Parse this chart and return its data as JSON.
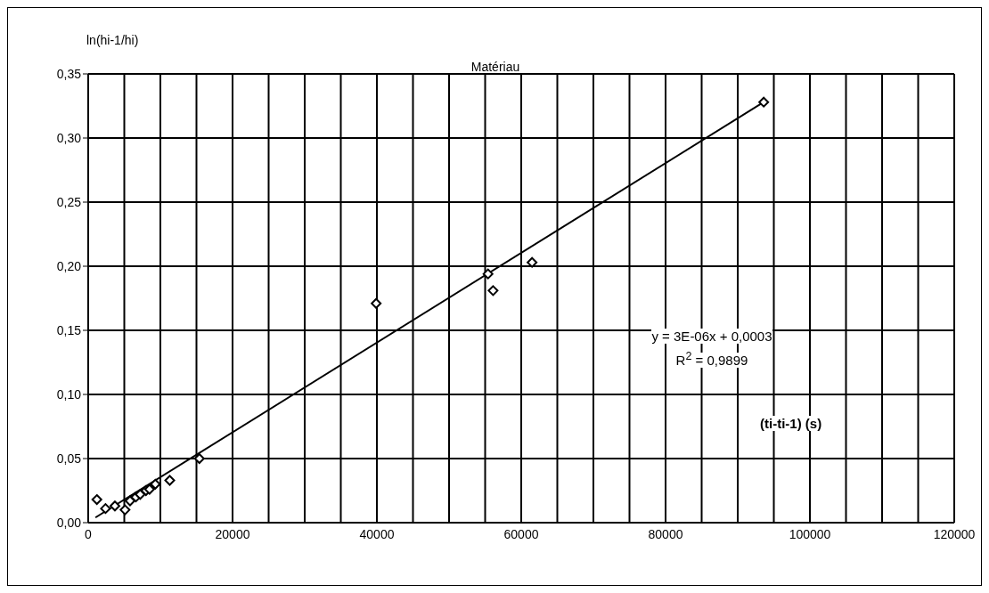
{
  "chart_data": {
    "type": "scatter",
    "title": "Matériau",
    "xlabel": "(ti-ti-1) (s)",
    "ylabel": "ln(hi-1/hi)",
    "annotations": [
      "y = 3E-06x + 0,0003",
      "R$^{2}$ = 0,9899"
    ],
    "xlim": [
      0,
      120000
    ],
    "xticks": [
      0,
      {
        "value": 5000,
        "label": null
      },
      {
        "value": 10000,
        "label": null
      },
      {
        "value": 15000,
        "label": null
      },
      20000,
      {
        "value": 25000,
        "label": null
      },
      {
        "value": 30000,
        "label": null
      },
      {
        "value": 35000,
        "label": null
      },
      40000,
      {
        "value": 45000,
        "label": null
      },
      {
        "value": 50000,
        "label": null
      },
      {
        "value": 55000,
        "label": null
      },
      60000,
      {
        "value": 65000,
        "label": null
      },
      {
        "value": 70000,
        "label": null
      },
      {
        "value": 75000,
        "label": null
      },
      80000,
      {
        "value": 85000,
        "label": null
      },
      {
        "value": 90000,
        "label": null
      },
      {
        "value": 95000,
        "label": null
      },
      100000,
      {
        "value": 105000,
        "label": null
      },
      {
        "value": 110000,
        "label": null
      },
      {
        "value": 115000,
        "label": null
      },
      120000
    ],
    "ylim": [
      0,
      0.35
    ],
    "yticks": [
      {
        "value": 0,
        "label": "0,00"
      },
      {
        "value": 0.05,
        "label": "0,05"
      },
      {
        "value": 0.1,
        "label": "0,10"
      },
      {
        "value": 0.15,
        "label": "0,15"
      },
      {
        "value": 0.2,
        "label": "0,20"
      },
      {
        "value": 0.25,
        "label": "0,25"
      },
      {
        "value": 0.3,
        "label": "0,30"
      },
      {
        "value": 0.35,
        "label": "0,35"
      }
    ],
    "grid": true,
    "marker": "diamond",
    "series": [
      {
        "color": "#000000",
        "x": [
          1200,
          2400,
          3700,
          5100,
          5800,
          6600,
          7200,
          8000,
          8500,
          9300,
          11300,
          15400,
          39900,
          55400,
          56100,
          61500,
          93600
        ],
        "values": [
          0.018,
          0.011,
          0.013,
          0.01,
          0.017,
          0.02,
          0.022,
          0.025,
          0.026,
          0.03,
          0.033,
          0.05,
          0.171,
          0.194,
          0.181,
          0.203,
          0.328
        ]
      },
      {
        "type": "line",
        "color": "#000000",
        "marker": "none",
        "x": [
          1000,
          93600
        ],
        "values": [
          0.004,
          0.328
        ]
      }
    ]
  }
}
